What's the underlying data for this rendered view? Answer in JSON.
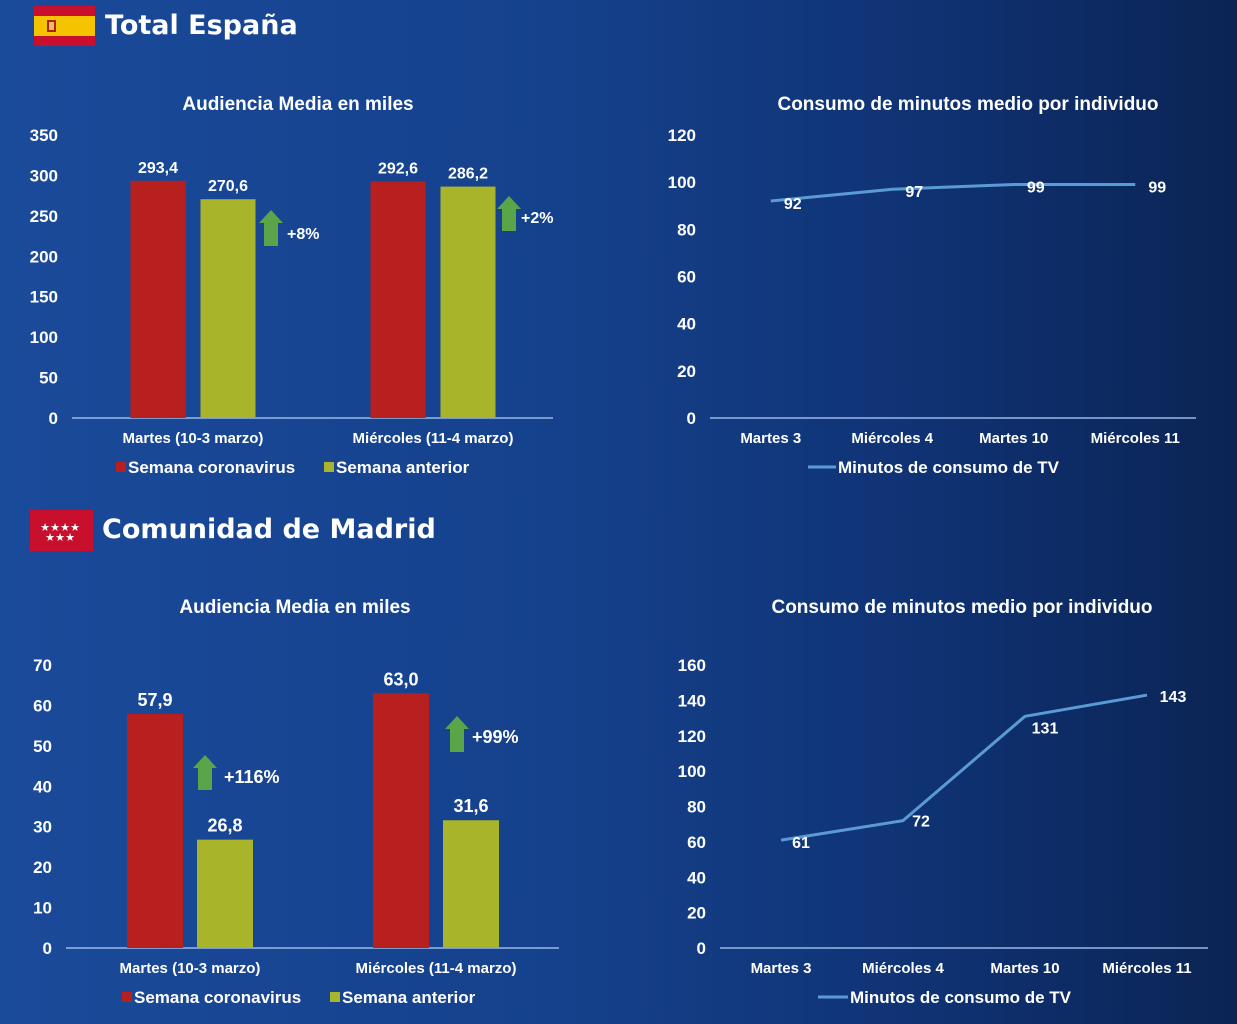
{
  "sections": [
    {
      "title": "Total España",
      "flag": "spain-flag-icon"
    },
    {
      "title": "Comunidad de Madrid",
      "flag": "madrid-flag-icon"
    }
  ],
  "colors": {
    "coronavirus": "#b82020",
    "anterior": "#a8b42a",
    "line": "#5b9bd5",
    "arrow": "#5aa54a",
    "axis": "#9ab8e6"
  },
  "chart_data": [
    {
      "type": "bar",
      "title": "Audiencia Media en miles",
      "categories": [
        "Martes (10-3 marzo)",
        "Miércoles (11-4 marzo)"
      ],
      "series": [
        {
          "name": "Semana coronavirus",
          "values": [
            293.4,
            292.6
          ],
          "labels": [
            "293,4",
            "292,6"
          ]
        },
        {
          "name": "Semana anterior",
          "values": [
            270.6,
            286.2
          ],
          "labels": [
            "270,6",
            "286,2"
          ]
        }
      ],
      "annotations": [
        "+8%",
        "+2%"
      ],
      "ylim": [
        0,
        350
      ],
      "yticks": [
        0,
        50,
        100,
        150,
        200,
        250,
        300,
        350
      ],
      "legend": "bottom"
    },
    {
      "type": "line",
      "title": "Consumo de minutos medio por individuo",
      "categories": [
        "Martes 3",
        "Miércoles 4",
        "Martes 10",
        "Miércoles 11"
      ],
      "series": [
        {
          "name": "Minutos de consumo de TV",
          "values": [
            92,
            97,
            99,
            99
          ],
          "labels": [
            "92",
            "97",
            "99",
            "99"
          ]
        }
      ],
      "ylim": [
        0,
        120
      ],
      "yticks": [
        0,
        20,
        40,
        60,
        80,
        100,
        120
      ],
      "legend": "bottom"
    },
    {
      "type": "bar",
      "title": "Audiencia Media en miles",
      "categories": [
        "Martes (10-3 marzo)",
        "Miércoles (11-4 marzo)"
      ],
      "series": [
        {
          "name": "Semana coronavirus",
          "values": [
            57.9,
            63.0
          ],
          "labels": [
            "57,9",
            "63,0"
          ]
        },
        {
          "name": "Semana anterior",
          "values": [
            26.8,
            31.6
          ],
          "labels": [
            "26,8",
            "31,6"
          ]
        }
      ],
      "annotations": [
        "+116%",
        "+99%"
      ],
      "ylim": [
        0,
        70
      ],
      "yticks": [
        0,
        10,
        20,
        30,
        40,
        50,
        60,
        70
      ],
      "legend": "bottom"
    },
    {
      "type": "line",
      "title": "Consumo de minutos medio por individuo",
      "categories": [
        "Martes 3",
        "Miércoles 4",
        "Martes 10",
        "Miércoles 11"
      ],
      "series": [
        {
          "name": "Minutos de consumo de TV",
          "values": [
            61,
            72,
            131,
            143
          ],
          "labels": [
            "61",
            "72",
            "131",
            "143"
          ]
        }
      ],
      "ylim": [
        0,
        160
      ],
      "yticks": [
        0,
        20,
        40,
        60,
        80,
        100,
        120,
        140,
        160
      ],
      "legend": "bottom"
    }
  ]
}
